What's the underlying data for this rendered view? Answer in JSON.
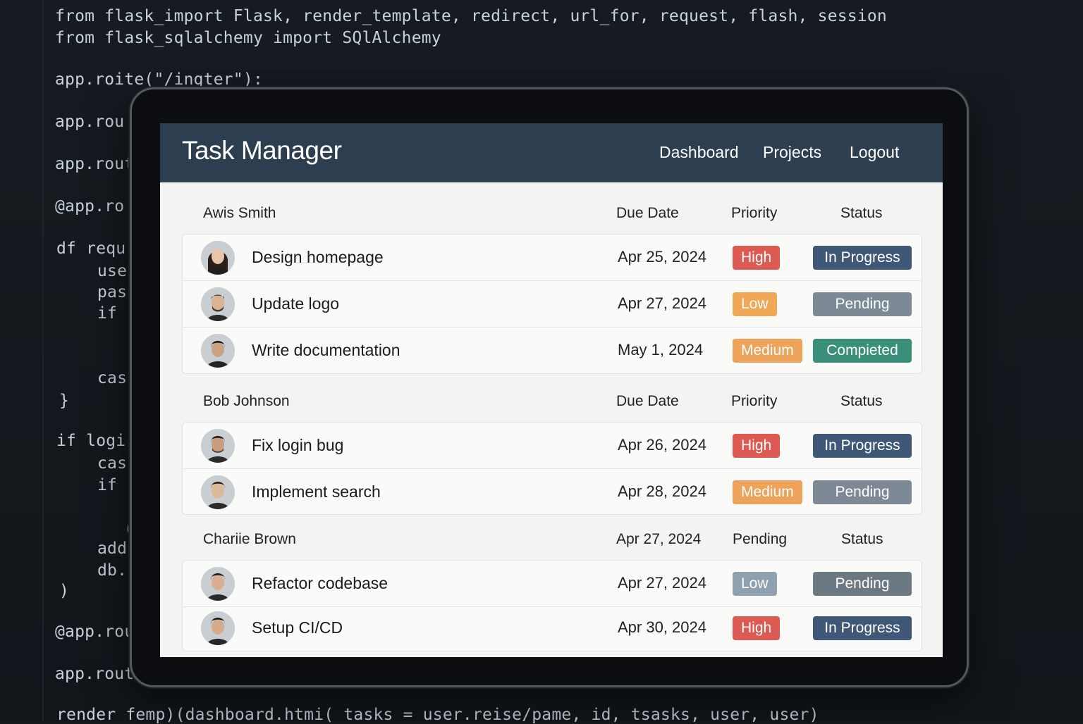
{
  "colors": {
    "header_bg": "#2c3e50",
    "priority_high": "#dc5a52",
    "priority_low_orange": "#f0a857",
    "priority_medium": "#eea35b",
    "priority_low_gray": "#8fa0ae",
    "status_in_progress": "#3f5878",
    "status_pending": "#7d8a96",
    "status_completed": "#3a8f7a"
  },
  "code_editor": {
    "lines": [
      "from flask_import Flask, render_template, redirect, url_for, request, flash, session",
      "from flask_sqlalchemy import SQlAlchemy",
      "app.roite(\"/ingter\"):",
      "app.rou",
      "app.rout",
      "@app.ro",
      "df requ",
      "use",
      "pas",
      "if (",
      "cas",
      "}",
      "if logi",
      "cas",
      "if (",
      "(",
      "add",
      "db.",
      ")",
      "@app.rou",
      "app.route( /dashboard')",
      "render femp)(dashboard.htmi( tasks = user.reise/pame, id, tsasks, user, user)"
    ]
  },
  "app": {
    "title": "Task Manager",
    "nav": [
      "Dashboard",
      "Projects",
      "Logout"
    ]
  },
  "groups": [
    {
      "owner": "Awis Smith",
      "col_due": "Due Date",
      "col_priority": "Priority",
      "col_status": "Status",
      "tasks": [
        {
          "title": "Design homepage",
          "due": "Apr 25, 2024",
          "priority": "High",
          "status": "In Progress",
          "avatar": "woman-avatar-icon"
        },
        {
          "title": "Update logo",
          "due": "Apr 27, 2024",
          "priority": "Low",
          "status": "Pending",
          "avatar": "man-avatar-icon"
        },
        {
          "title": "Write documentation",
          "due": "May 1, 2024",
          "priority": "Medium",
          "status": "Compieted",
          "avatar": "man-avatar-icon"
        }
      ]
    },
    {
      "owner": "Bob Johnson",
      "col_due": "Due Date",
      "col_priority": "Priority",
      "col_status": "Status",
      "tasks": [
        {
          "title": "Fix login bug",
          "due": "Apr 26, 2024",
          "priority": "High",
          "status": "In Progress",
          "avatar": "man-avatar-icon"
        },
        {
          "title": "Implement search",
          "due": "Apr 28, 2024",
          "priority": "Medium",
          "status": "Pending",
          "avatar": "man-avatar-icon"
        }
      ]
    },
    {
      "owner": "Chariie Brown",
      "col_due": "Apr 27, 2024",
      "col_priority": "Pending",
      "col_status": "Status",
      "tasks": [
        {
          "title": "Refactor codebase",
          "due": "Apr 27, 2024",
          "priority": "Low",
          "status": "Pending",
          "avatar": "man-avatar-icon"
        },
        {
          "title": "Setup CI/CD",
          "due": "Apr 30, 2024",
          "priority": "High",
          "status": "In Progress",
          "avatar": "man-avatar-icon"
        }
      ]
    }
  ]
}
